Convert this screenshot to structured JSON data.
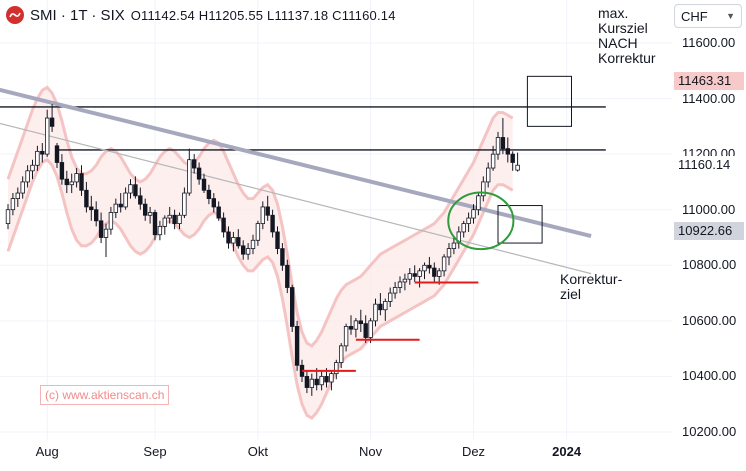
{
  "header": {
    "symbol": "SMI · 1T · SIX",
    "ohlc": "O11142.54  H11205.55  L11137.18  C11160.14"
  },
  "currency": {
    "label": "CHF",
    "icon": "chevron-down-icon"
  },
  "annotations": {
    "top_note": "max.\nKursziel\nNACH\nKorrektur",
    "bottom_note": "Korrektur-\nziel",
    "watermark": "(c) www.aktienscan.ch"
  },
  "colors": {
    "bull": "#ffffff",
    "bear": "#131722",
    "band": "#f3b6b6",
    "band_fill": "#fde8e8",
    "trend_thick": "#a6a9bd",
    "trend_thin": "#b7b7b7",
    "support": "#e31b1b",
    "circle": "#2e9c3a"
  },
  "chart_data": {
    "type": "candlestick",
    "title": "SMI · 1T · SIX",
    "xlabel": "",
    "ylabel": "",
    "y_range": [
      10200,
      11750
    ],
    "y_ticks": [
      "11600.00",
      "11400.00",
      "11200.00",
      "11000.00",
      "10800.00",
      "10600.00",
      "10400.00",
      "10200.00"
    ],
    "x_ticks": [
      {
        "label": "Aug",
        "index": 8
      },
      {
        "label": "Sep",
        "index": 30
      },
      {
        "label": "Okt",
        "index": 51
      },
      {
        "label": "Nov",
        "index": 74
      },
      {
        "label": "Dez",
        "index": 95
      },
      {
        "label": "2024",
        "index": 114,
        "bold": true
      }
    ],
    "price_labels": [
      {
        "text": "11463.31",
        "value": 11463.31,
        "style": "pink"
      },
      {
        "text": "11160.14",
        "value": 11160.14,
        "style": "plain"
      },
      {
        "text": "10922.66",
        "value": 10922.66,
        "style": "grey"
      }
    ],
    "candles": [
      [
        10950,
        11020,
        10930,
        11000
      ],
      [
        11000,
        11060,
        10980,
        11040
      ],
      [
        11040,
        11080,
        11010,
        11060
      ],
      [
        11060,
        11120,
        11040,
        11100
      ],
      [
        11100,
        11160,
        11080,
        11140
      ],
      [
        11140,
        11180,
        11110,
        11160
      ],
      [
        11160,
        11230,
        11140,
        11210
      ],
      [
        11210,
        11240,
        11170,
        11200
      ],
      [
        11200,
        11360,
        11190,
        11330
      ],
      [
        11330,
        11380,
        11280,
        11300
      ],
      [
        11230,
        11240,
        11150,
        11170
      ],
      [
        11170,
        11200,
        11090,
        11110
      ],
      [
        11110,
        11140,
        11060,
        11090
      ],
      [
        11090,
        11130,
        11060,
        11100
      ],
      [
        11100,
        11150,
        11080,
        11130
      ],
      [
        11130,
        11160,
        11050,
        11070
      ],
      [
        11070,
        11100,
        10990,
        11010
      ],
      [
        11010,
        11050,
        10960,
        11000
      ],
      [
        11000,
        11030,
        10940,
        10960
      ],
      [
        10960,
        10990,
        10880,
        10900
      ],
      [
        10900,
        10950,
        10830,
        10930
      ],
      [
        10930,
        11010,
        10910,
        10990
      ],
      [
        10990,
        11040,
        10970,
        11020
      ],
      [
        11020,
        11060,
        10990,
        11010
      ],
      [
        11010,
        11080,
        11000,
        11060
      ],
      [
        11060,
        11110,
        11040,
        11090
      ],
      [
        11090,
        11120,
        11040,
        11050
      ],
      [
        11050,
        11080,
        11000,
        11020
      ],
      [
        11020,
        11040,
        10960,
        10980
      ],
      [
        10980,
        11010,
        10950,
        10990
      ],
      [
        10990,
        11000,
        10890,
        10910
      ],
      [
        10910,
        10960,
        10890,
        10940
      ],
      [
        10940,
        10980,
        10910,
        10970
      ],
      [
        10970,
        11010,
        10950,
        10980
      ],
      [
        10980,
        11000,
        10930,
        10950
      ],
      [
        10950,
        10990,
        10930,
        10980
      ],
      [
        10980,
        11080,
        10970,
        11060
      ],
      [
        11060,
        11220,
        11050,
        11180
      ],
      [
        11180,
        11200,
        11130,
        11150
      ],
      [
        11150,
        11170,
        11090,
        11110
      ],
      [
        11110,
        11130,
        11060,
        11070
      ],
      [
        11070,
        11090,
        11020,
        11040
      ],
      [
        11040,
        11060,
        10990,
        11010
      ],
      [
        11010,
        11030,
        10960,
        10970
      ],
      [
        10970,
        10990,
        10900,
        10920
      ],
      [
        10920,
        10940,
        10860,
        10880
      ],
      [
        10880,
        10920,
        10850,
        10900
      ],
      [
        10900,
        10930,
        10860,
        10870
      ],
      [
        10870,
        10890,
        10820,
        10840
      ],
      [
        10840,
        10880,
        10820,
        10860
      ],
      [
        10860,
        10910,
        10840,
        10890
      ],
      [
        10890,
        10960,
        10870,
        10950
      ],
      [
        10950,
        11030,
        10930,
        11010
      ],
      [
        11010,
        11050,
        10960,
        10980
      ],
      [
        10980,
        11000,
        10900,
        10920
      ],
      [
        10920,
        10940,
        10840,
        10860
      ],
      [
        10860,
        10880,
        10780,
        10800
      ],
      [
        10800,
        10820,
        10700,
        10720
      ],
      [
        10720,
        10730,
        10560,
        10580
      ],
      [
        10580,
        10600,
        10420,
        10440
      ],
      [
        10440,
        10460,
        10380,
        10400
      ],
      [
        10400,
        10420,
        10340,
        10360
      ],
      [
        10360,
        10410,
        10330,
        10390
      ],
      [
        10390,
        10430,
        10350,
        10370
      ],
      [
        10370,
        10420,
        10350,
        10400
      ],
      [
        10400,
        10430,
        10360,
        10380
      ],
      [
        10380,
        10420,
        10350,
        10410
      ],
      [
        10410,
        10460,
        10390,
        10450
      ],
      [
        10450,
        10520,
        10430,
        10510
      ],
      [
        10510,
        10590,
        10490,
        10580
      ],
      [
        10580,
        10620,
        10550,
        10570
      ],
      [
        10570,
        10610,
        10540,
        10600
      ],
      [
        10600,
        10640,
        10560,
        10590
      ],
      [
        10590,
        10620,
        10520,
        10540
      ],
      [
        10540,
        10610,
        10520,
        10600
      ],
      [
        10600,
        10680,
        10580,
        10660
      ],
      [
        10660,
        10700,
        10620,
        10640
      ],
      [
        10640,
        10680,
        10600,
        10670
      ],
      [
        10670,
        10720,
        10650,
        10700
      ],
      [
        10700,
        10740,
        10680,
        10720
      ],
      [
        10720,
        10760,
        10700,
        10740
      ],
      [
        10740,
        10770,
        10710,
        10750
      ],
      [
        10750,
        10790,
        10730,
        10770
      ],
      [
        10770,
        10800,
        10740,
        10760
      ],
      [
        10760,
        10790,
        10720,
        10780
      ],
      [
        10780,
        10810,
        10750,
        10800
      ],
      [
        10800,
        10830,
        10770,
        10790
      ],
      [
        10790,
        10810,
        10740,
        10760
      ],
      [
        10760,
        10790,
        10730,
        10780
      ],
      [
        10780,
        10840,
        10760,
        10830
      ],
      [
        10830,
        10880,
        10800,
        10860
      ],
      [
        10860,
        10900,
        10840,
        10880
      ],
      [
        10880,
        10940,
        10860,
        10920
      ],
      [
        10920,
        10960,
        10900,
        10950
      ],
      [
        10950,
        10990,
        10920,
        10970
      ],
      [
        10970,
        11020,
        10950,
        11000
      ],
      [
        11000,
        11060,
        10980,
        11050
      ],
      [
        11050,
        11120,
        11030,
        11100
      ],
      [
        11100,
        11170,
        11080,
        11150
      ],
      [
        11150,
        11230,
        11140,
        11200
      ],
      [
        11200,
        11280,
        11180,
        11260
      ],
      [
        11260,
        11330,
        11200,
        11220
      ],
      [
        11220,
        11260,
        11170,
        11200
      ],
      [
        11200,
        11210,
        11140,
        11170
      ],
      [
        11142.54,
        11205.55,
        11137.18,
        11160.14
      ]
    ],
    "band_mid": [
      10980,
      11030,
      11080,
      11130,
      11180,
      11230,
      11270,
      11300,
      11310,
      11290,
      11250,
      11190,
      11120,
      11060,
      11020,
      11000,
      11000,
      11010,
      11030,
      11060,
      11080,
      11090,
      11080,
      11060,
      11030,
      11000,
      10980,
      10970,
      10980,
      11000,
      11030,
      11060,
      11080,
      11090,
      11080,
      11060,
      11040,
      11030,
      11040,
      11060,
      11090,
      11110,
      11120,
      11110,
      11080,
      11040,
      11000,
      10960,
      10930,
      10910,
      10910,
      10930,
      10950,
      10960,
      10940,
      10890,
      10810,
      10710,
      10600,
      10500,
      10430,
      10390,
      10380,
      10400,
      10430,
      10470,
      10510,
      10550,
      10580,
      10600,
      10610,
      10620,
      10630,
      10650,
      10670,
      10690,
      10710,
      10720,
      10730,
      10740,
      10750,
      10760,
      10770,
      10780,
      10790,
      10800,
      10810,
      10820,
      10840,
      10860,
      10890,
      10920,
      10950,
      10980,
      11010,
      11040,
      11080,
      11120,
      11160,
      11200,
      11220,
      11220,
      11210,
      11200
    ],
    "band_width": 130,
    "trendlines": [
      {
        "name": "thick",
        "from": [
          -6,
          11450
        ],
        "to": [
          119,
          10905
        ]
      },
      {
        "name": "thin",
        "from": [
          -6,
          11330
        ],
        "to": [
          119,
          10770
        ]
      }
    ],
    "horizontal_lines": [
      {
        "value": 11370,
        "from": -6,
        "to": 122
      },
      {
        "value": 11215,
        "from": 10,
        "to": 122
      }
    ],
    "support_lines": [
      {
        "value": 10420,
        "from": 60,
        "to": 71
      },
      {
        "value": 10532,
        "from": 71,
        "to": 84
      },
      {
        "value": 10738,
        "from": 83,
        "to": 96
      }
    ],
    "target_boxes": [
      {
        "from": 106,
        "to": 115,
        "top": 11480,
        "bottom": 11300
      },
      {
        "from": 100,
        "to": 109,
        "top": 11015,
        "bottom": 10880
      }
    ],
    "circle": {
      "center_index": 96.5,
      "center_value": 10960,
      "radius_idx": 3.8,
      "radius_val": 120
    }
  }
}
